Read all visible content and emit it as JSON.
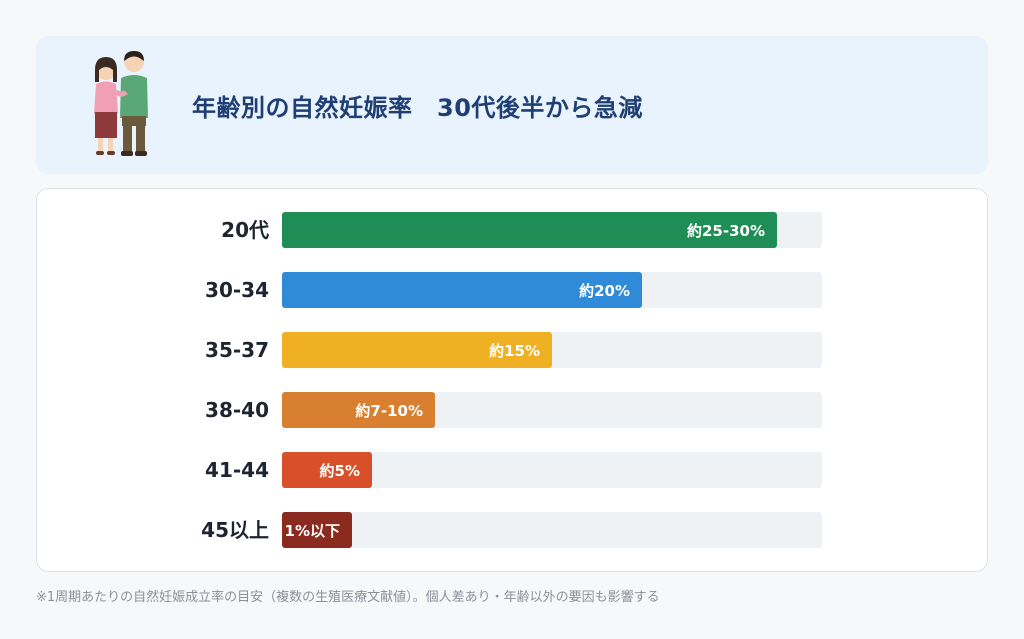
{
  "header": {
    "title": "年齢別の自然妊娠率　30代後半から急減"
  },
  "chart_data": {
    "type": "bar",
    "orientation": "horizontal",
    "categories": [
      "20代",
      "30-34",
      "35-37",
      "38-40",
      "41-44",
      "45以上"
    ],
    "values": [
      27.5,
      20,
      15,
      8.5,
      5,
      1
    ],
    "value_labels": [
      "約25-30%",
      "約20%",
      "約15%",
      "約7-10%",
      "約5%",
      "1%以下"
    ],
    "colors": [
      "#1e8e56",
      "#2f8ad8",
      "#f0b023",
      "#d98030",
      "#d8502a",
      "#8b2a1e"
    ],
    "xlim": [
      0,
      30
    ],
    "track_color": "#eff2f5",
    "grid": false,
    "legend": "none"
  },
  "footnote": "※1周期あたりの自然妊娠成立率の目安（複数の生殖医療文献値）。個人差あり・年齢以外の要因も影響する"
}
